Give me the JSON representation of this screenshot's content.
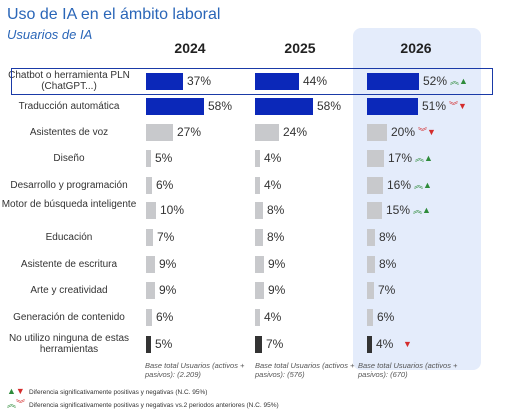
{
  "header": {
    "title": "Uso de IA en el ámbito laboral",
    "subtitle": "Usuarios de IA"
  },
  "colors": {
    "accent": "#2a66b8",
    "bar_blue": "#0b28b9",
    "bar_gray": "#c8c9cc",
    "bar_dark": "#333333",
    "up": "#2e8b3a",
    "down": "#d42c2c",
    "highlight_col": "#e4ecfb"
  },
  "chart_data": {
    "type": "bar",
    "title": "Uso de IA en el ámbito laboral",
    "subtitle": "Usuarios de IA",
    "unit": "%",
    "years": [
      "2024",
      "2025",
      "2026"
    ],
    "categories": [
      "Chatbot o herramienta PLN (ChatGPT...)",
      "Traducción automática",
      "Asistentes de voz",
      "Diseño",
      "Desarrollo y programación",
      "Motor de búsqueda inteligente",
      "Educación",
      "Asistente de escritura",
      "Arte y creatividad",
      "Generación de contenido",
      "No utilizo ninguna de estas herramientas"
    ],
    "series": [
      {
        "name": "2024",
        "values": [
          37,
          58,
          27,
          5,
          6,
          10,
          7,
          9,
          9,
          6,
          5
        ]
      },
      {
        "name": "2025",
        "values": [
          44,
          58,
          24,
          4,
          4,
          8,
          8,
          9,
          9,
          4,
          7
        ]
      },
      {
        "name": "2026",
        "values": [
          52,
          51,
          20,
          17,
          16,
          15,
          8,
          8,
          7,
          6,
          4
        ]
      }
    ],
    "bar_color_key": [
      "blue",
      "blue",
      "gray",
      "gray",
      "gray",
      "gray",
      "gray",
      "gray",
      "gray",
      "gray",
      "dark"
    ],
    "significance_2026": [
      {
        "single": "up",
        "double": "up"
      },
      {
        "single": "down",
        "double": "down"
      },
      {
        "single": "down",
        "double": "down"
      },
      {
        "single": "up",
        "double": "up"
      },
      {
        "single": "up",
        "double": "up"
      },
      {
        "single": "up",
        "double": "up"
      },
      null,
      null,
      null,
      null,
      {
        "single": "down",
        "double": null
      }
    ],
    "highlighted_category": "Chatbot o herramienta PLN (ChatGPT...)"
  },
  "bases": [
    "Base total Usuarios (activos + pasivos): (2.209)",
    "Base total Usuarios (activos + pasivos): (576)",
    "Base total Usuarios (activos + pasivos): (670)"
  ],
  "legend": [
    {
      "text": "Diferencia significativamente positivas y negativas (N.C. 95%)"
    },
    {
      "text": "Diferencia significativamente positivas y negativas vs.2 periodos anteriores (N.C. 95%)"
    }
  ]
}
